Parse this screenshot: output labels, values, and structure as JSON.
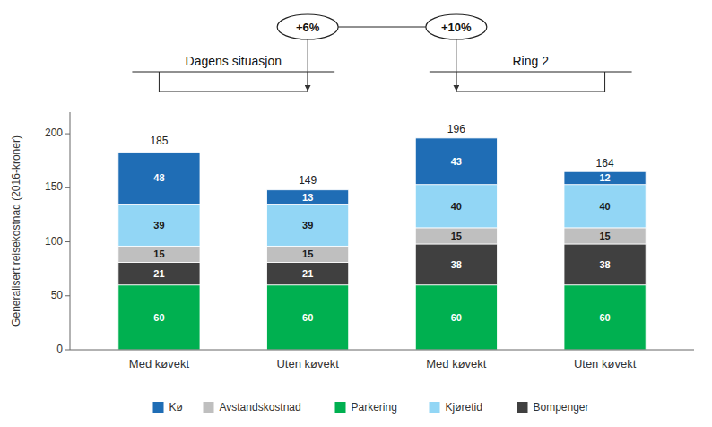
{
  "chart_data": {
    "type": "bar",
    "stacked": true,
    "data_labels": true,
    "grid": false,
    "legend": "bottom",
    "categories": [
      "Med køvekt",
      "Uten køvekt",
      "Med køvekt",
      "Uten køvekt"
    ],
    "series": [
      {
        "name": "Parkering",
        "color": "#00b050",
        "values": [
          60,
          60,
          60,
          60
        ]
      },
      {
        "name": "Bompenger",
        "color": "#404040",
        "values": [
          21,
          21,
          38,
          38
        ]
      },
      {
        "name": "Avstandskostnad",
        "color": "#bfbfbf",
        "values": [
          15,
          15,
          15,
          15
        ]
      },
      {
        "name": "Kjøretid",
        "color": "#92d6f5",
        "values": [
          39,
          39,
          40,
          40
        ]
      },
      {
        "name": "Kø",
        "color": "#1f6db5",
        "values": [
          48,
          13,
          43,
          12
        ]
      }
    ],
    "totals": [
      185,
      149,
      196,
      164
    ],
    "ylabel": "Generalisert reisekostnad (2016-kroner)",
    "ylim": [
      0,
      220
    ],
    "yticks": [
      0,
      50,
      100,
      150,
      200
    ],
    "group_labels": [
      "Dagens situasjon",
      "Ring 2"
    ],
    "annotations": [
      "+6%",
      "+10%"
    ],
    "legend_order": [
      "Kø",
      "Avstandskostnad",
      "Parkering",
      "Kjøretid",
      "Bompenger"
    ]
  }
}
